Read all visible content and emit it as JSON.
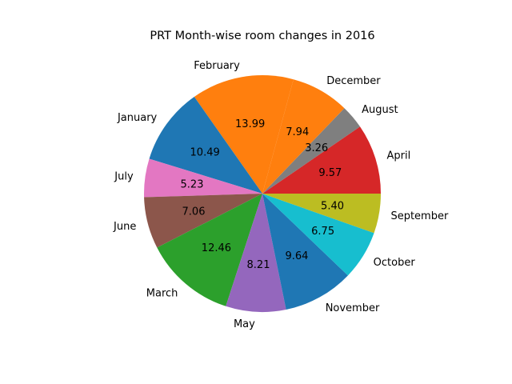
{
  "chart_data": {
    "type": "pie",
    "title": "PRT Month-wise room changes in 2016",
    "slices": [
      {
        "label": "April",
        "value": 9.57,
        "value_text": "9.57",
        "color": "#d62728"
      },
      {
        "label": "August",
        "value": 3.26,
        "value_text": "3.26",
        "color": "#7f7f7f"
      },
      {
        "label": "December",
        "value": 7.94,
        "value_text": "7.94",
        "color": "#ff7f0e"
      },
      {
        "label": "February",
        "value": 13.99,
        "value_text": "13.99",
        "color": "#ff7f0e"
      },
      {
        "label": "January",
        "value": 10.49,
        "value_text": "10.49",
        "color": "#1f77b4"
      },
      {
        "label": "July",
        "value": 5.23,
        "value_text": "5.23",
        "color": "#e377c2"
      },
      {
        "label": "June",
        "value": 7.06,
        "value_text": "7.06",
        "color": "#8c564b"
      },
      {
        "label": "March",
        "value": 12.46,
        "value_text": "12.46",
        "color": "#2ca02c"
      },
      {
        "label": "May",
        "value": 8.21,
        "value_text": "8.21",
        "color": "#9467bd"
      },
      {
        "label": "November",
        "value": 9.64,
        "value_text": "9.64",
        "color": "#1f77b4"
      },
      {
        "label": "October",
        "value": 6.75,
        "value_text": "6.75",
        "color": "#17becf"
      },
      {
        "label": "September",
        "value": 5.4,
        "value_text": "5.40",
        "color": "#bcbd22"
      }
    ],
    "start_angle_deg": 0,
    "direction": "counterclockwise"
  }
}
